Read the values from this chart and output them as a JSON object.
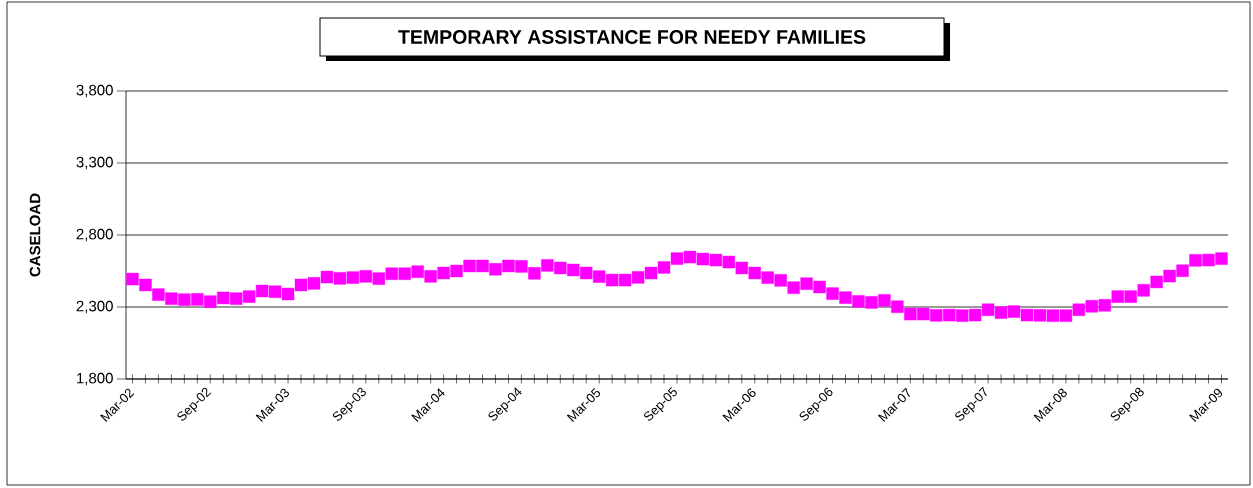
{
  "chart_data": {
    "type": "scatter",
    "title": "TEMPORARY ASSISTANCE FOR NEEDY FAMILIES",
    "ylabel": "CASELOAD",
    "categories": [
      "Mar-02",
      null,
      null,
      null,
      null,
      null,
      "Sep-02",
      null,
      null,
      null,
      null,
      null,
      "Mar-03",
      null,
      null,
      null,
      null,
      null,
      "Sep-03",
      null,
      null,
      null,
      null,
      null,
      "Mar-04",
      null,
      null,
      null,
      null,
      null,
      "Sep-04",
      null,
      null,
      null,
      null,
      null,
      "Mar-05",
      null,
      null,
      null,
      null,
      null,
      "Sep-05",
      null,
      null,
      null,
      null,
      null,
      "Mar-06",
      null,
      null,
      null,
      null,
      null,
      "Sep-06",
      null,
      null,
      null,
      null,
      null,
      "Mar-07",
      null,
      null,
      null,
      null,
      null,
      "Sep-07",
      null,
      null,
      null,
      null,
      null,
      "Mar-08",
      null,
      null,
      null,
      null,
      null,
      "Sep-08",
      null,
      null,
      null,
      null,
      null,
      "Mar-09"
    ],
    "values": [
      2494,
      2453,
      2386,
      2358,
      2351,
      2353,
      2337,
      2363,
      2358,
      2372,
      2411,
      2406,
      2390,
      2453,
      2464,
      2508,
      2499,
      2504,
      2513,
      2497,
      2531,
      2531,
      2545,
      2513,
      2536,
      2550,
      2585,
      2585,
      2562,
      2585,
      2582,
      2534,
      2589,
      2571,
      2557,
      2536,
      2511,
      2487,
      2487,
      2506,
      2536,
      2575,
      2636,
      2647,
      2633,
      2626,
      2612,
      2571,
      2536,
      2504,
      2485,
      2434,
      2462,
      2439,
      2393,
      2365,
      2339,
      2332,
      2346,
      2302,
      2251,
      2251,
      2242,
      2244,
      2240,
      2244,
      2281,
      2261,
      2268,
      2244,
      2242,
      2240,
      2240,
      2281,
      2305,
      2312,
      2372,
      2372,
      2416,
      2474,
      2515,
      2552,
      2624,
      2626,
      2636
    ],
    "color": "#ff00ff",
    "marker": "square",
    "grid": "y",
    "ylim": [
      1800,
      3800
    ],
    "yticks": [
      {
        "value": 1800,
        "label": "1,800"
      },
      {
        "value": 2300,
        "label": "2,300"
      },
      {
        "value": 2800,
        "label": "2,800"
      },
      {
        "value": 3300,
        "label": "3,300"
      },
      {
        "value": 3800,
        "label": "3,800"
      }
    ]
  }
}
